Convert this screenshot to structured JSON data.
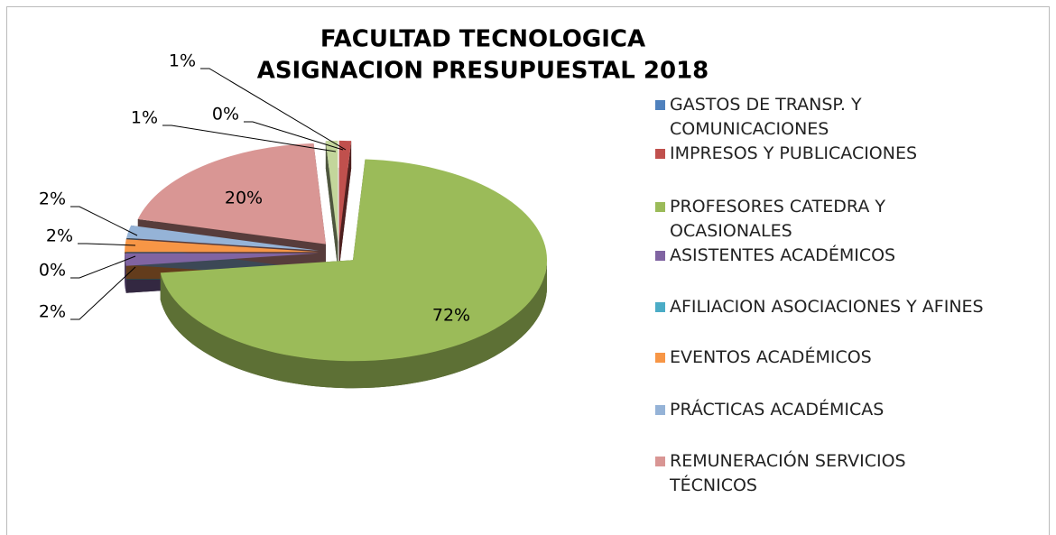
{
  "chart_data": {
    "type": "pie",
    "title": [
      "FACULTAD TECNOLOGICA",
      "ASIGNACION PRESUPUESTAL 2018"
    ],
    "categories": [
      "GASTOS DE TRANSP. Y COMUNICACIONES",
      "IMPRESOS Y PUBLICACIONES",
      "PROFESORES CATEDRA Y OCASIONALES",
      "ASISTENTES ACADÉMICOS",
      "AFILIACION ASOCIACIONES Y AFINES",
      "EVENTOS ACADÉMICOS",
      "PRÁCTICAS ACADÉMICAS",
      "REMUNERACIÓN SERVICIOS TÉCNICOS",
      null
    ],
    "values": [
      0,
      1,
      72,
      2,
      0,
      2,
      2,
      20,
      1
    ],
    "value_labels": [
      "0%",
      "1%",
      "72%",
      "2%",
      "0%",
      "2%",
      "2%",
      "20%",
      "1%"
    ],
    "colors": [
      "#4f81bd",
      "#c0504d",
      "#9bbb59",
      "#8064a2",
      "#4bacc6",
      "#f79646",
      "#95b3d7",
      "#d99694",
      "#c3d69b"
    ],
    "legend": "right"
  }
}
